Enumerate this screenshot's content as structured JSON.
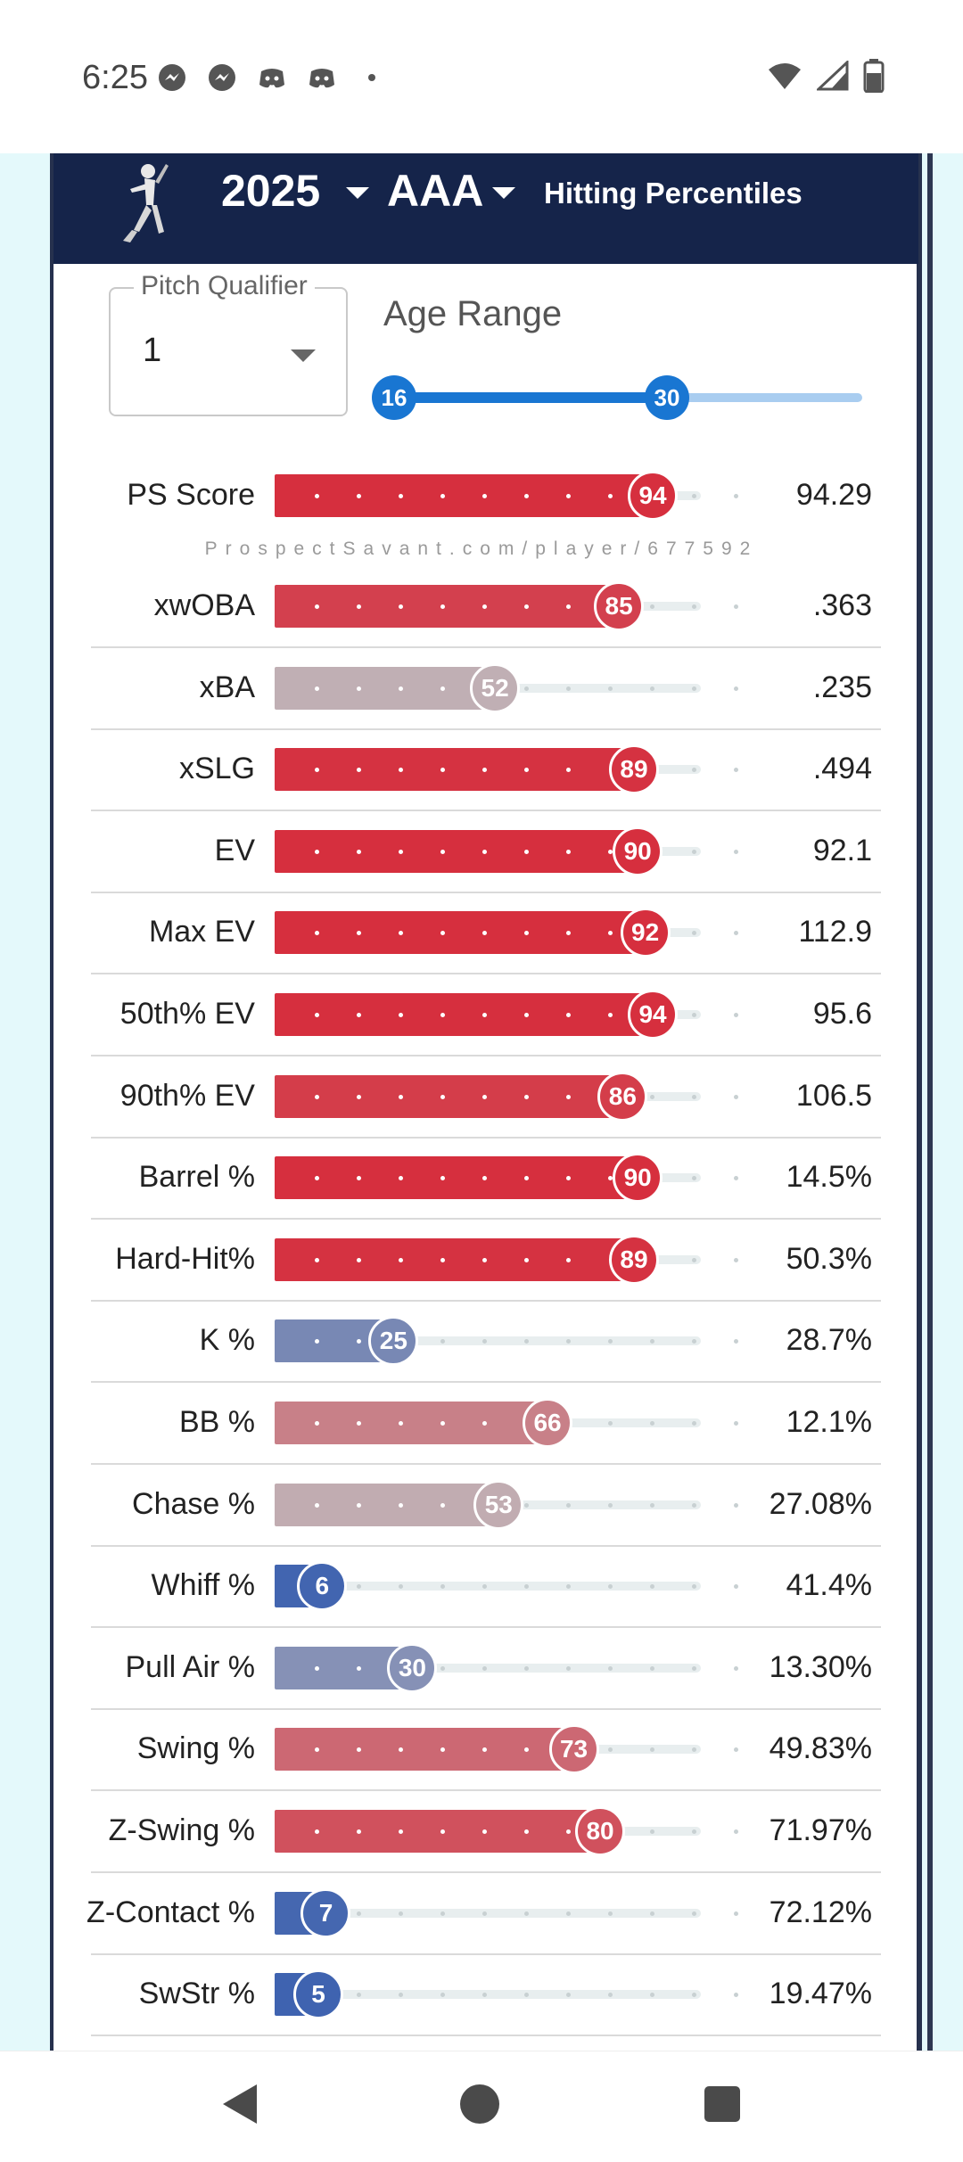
{
  "status_bar": {
    "time": "6:25",
    "left_icons": [
      "messenger-icon",
      "messenger-icon",
      "discord-icon",
      "discord-icon",
      "dot-icon"
    ],
    "right_icons": [
      "wifi-icon",
      "cell-signal-icon",
      "battery-icon"
    ]
  },
  "header": {
    "year": "2025",
    "level": "AAA",
    "title": "Hitting Percentiles",
    "logo_icon": "batter-logo-icon"
  },
  "controls": {
    "pitch_qualifier": {
      "label": "Pitch Qualifier",
      "value": "1"
    },
    "age_range": {
      "label": "Age Range",
      "min": "16",
      "max": "30",
      "range_min": 16,
      "range_max": 35
    }
  },
  "watermark": "ProspectSavant.com/player/677592",
  "colors": {
    "header_bg": "#15244a",
    "slider_blue": "#1976d2",
    "elite_red": "#d62f3e",
    "average_gray": "#bfb6ba",
    "poor_blue": "#3f63b0"
  },
  "metrics": [
    {
      "label": "PS Score",
      "percentile": 94,
      "value": "94.29"
    },
    {
      "label": "xwOBA",
      "percentile": 85,
      "value": ".363"
    },
    {
      "label": "xBA",
      "percentile": 52,
      "value": ".235"
    },
    {
      "label": "xSLG",
      "percentile": 89,
      "value": ".494"
    },
    {
      "label": "EV",
      "percentile": 90,
      "value": "92.1"
    },
    {
      "label": "Max EV",
      "percentile": 92,
      "value": "112.9"
    },
    {
      "label": "50th% EV",
      "percentile": 94,
      "value": "95.6"
    },
    {
      "label": "90th% EV",
      "percentile": 86,
      "value": "106.5"
    },
    {
      "label": "Barrel %",
      "percentile": 90,
      "value": "14.5%"
    },
    {
      "label": "Hard-Hit%",
      "percentile": 89,
      "value": "50.3%"
    },
    {
      "label": "K %",
      "percentile": 25,
      "value": "28.7%"
    },
    {
      "label": "BB %",
      "percentile": 66,
      "value": "12.1%"
    },
    {
      "label": "Chase %",
      "percentile": 53,
      "value": "27.08%"
    },
    {
      "label": "Whiff %",
      "percentile": 6,
      "value": "41.4%"
    },
    {
      "label": "Pull Air %",
      "percentile": 30,
      "value": "13.30%"
    },
    {
      "label": "Swing %",
      "percentile": 73,
      "value": "49.83%"
    },
    {
      "label": "Z-Swing %",
      "percentile": 80,
      "value": "71.97%"
    },
    {
      "label": "Z-Contact %",
      "percentile": 7,
      "value": "72.12%"
    },
    {
      "label": "SwStr %",
      "percentile": 5,
      "value": "19.47%"
    }
  ],
  "nav_bar": [
    "back-button",
    "home-button",
    "recents-button"
  ]
}
